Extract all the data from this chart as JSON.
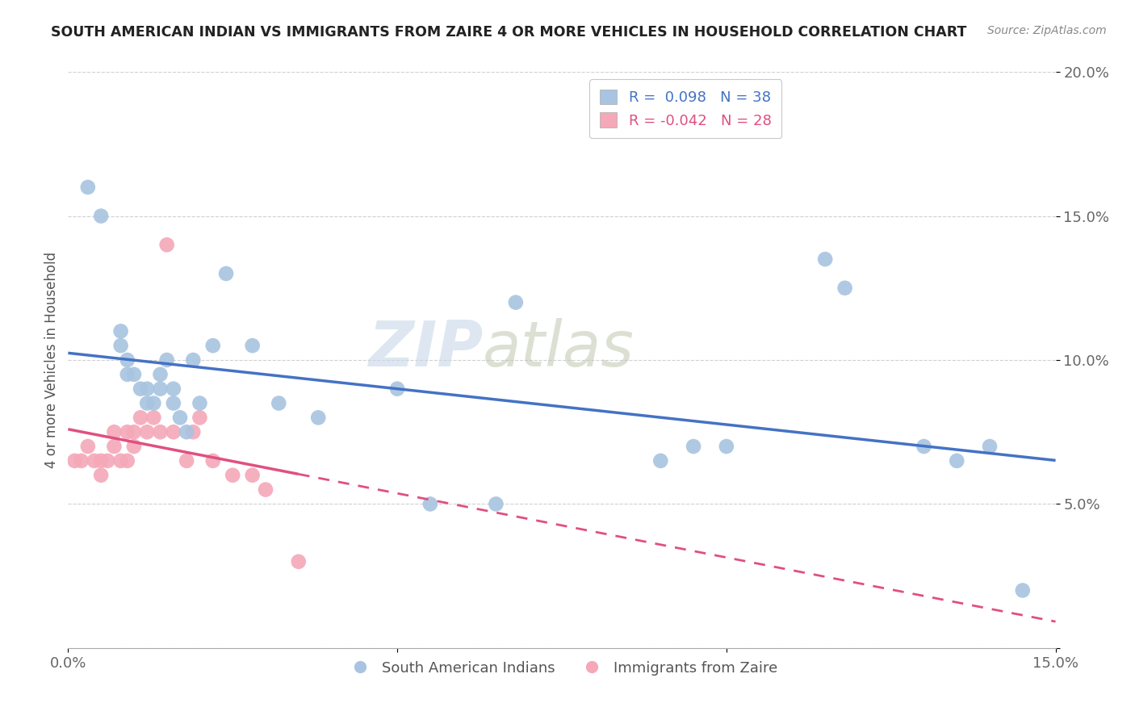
{
  "title": "SOUTH AMERICAN INDIAN VS IMMIGRANTS FROM ZAIRE 4 OR MORE VEHICLES IN HOUSEHOLD CORRELATION CHART",
  "source": "Source: ZipAtlas.com",
  "ylabel": "4 or more Vehicles in Household",
  "xlabel": "",
  "xlim": [
    0.0,
    0.15
  ],
  "ylim": [
    0.0,
    0.2
  ],
  "blue_R": 0.098,
  "blue_N": 38,
  "pink_R": -0.042,
  "pink_N": 28,
  "blue_color": "#a8c4e0",
  "pink_color": "#f4a8b8",
  "blue_line_color": "#4472c4",
  "pink_line_color": "#e05080",
  "legend_label_blue": "South American Indians",
  "legend_label_pink": "Immigrants from Zaire",
  "watermark_zip": "ZIP",
  "watermark_atlas": "atlas",
  "blue_x": [
    0.003,
    0.005,
    0.008,
    0.008,
    0.009,
    0.009,
    0.01,
    0.011,
    0.012,
    0.012,
    0.013,
    0.014,
    0.014,
    0.015,
    0.016,
    0.016,
    0.017,
    0.018,
    0.019,
    0.02,
    0.022,
    0.024,
    0.028,
    0.032,
    0.038,
    0.05,
    0.055,
    0.065,
    0.068,
    0.09,
    0.095,
    0.1,
    0.115,
    0.118,
    0.13,
    0.135,
    0.14,
    0.145
  ],
  "blue_y": [
    0.16,
    0.15,
    0.11,
    0.105,
    0.1,
    0.095,
    0.095,
    0.09,
    0.085,
    0.09,
    0.085,
    0.09,
    0.095,
    0.1,
    0.085,
    0.09,
    0.08,
    0.075,
    0.1,
    0.085,
    0.105,
    0.13,
    0.105,
    0.085,
    0.08,
    0.09,
    0.05,
    0.05,
    0.12,
    0.065,
    0.07,
    0.07,
    0.135,
    0.125,
    0.07,
    0.065,
    0.07,
    0.02
  ],
  "pink_x": [
    0.001,
    0.002,
    0.003,
    0.004,
    0.005,
    0.005,
    0.006,
    0.007,
    0.007,
    0.008,
    0.009,
    0.009,
    0.01,
    0.01,
    0.011,
    0.012,
    0.013,
    0.014,
    0.015,
    0.016,
    0.018,
    0.019,
    0.02,
    0.022,
    0.025,
    0.028,
    0.03,
    0.035
  ],
  "pink_y": [
    0.065,
    0.065,
    0.07,
    0.065,
    0.065,
    0.06,
    0.065,
    0.075,
    0.07,
    0.065,
    0.075,
    0.065,
    0.07,
    0.075,
    0.08,
    0.075,
    0.08,
    0.075,
    0.14,
    0.075,
    0.065,
    0.075,
    0.08,
    0.065,
    0.06,
    0.06,
    0.055,
    0.03
  ]
}
